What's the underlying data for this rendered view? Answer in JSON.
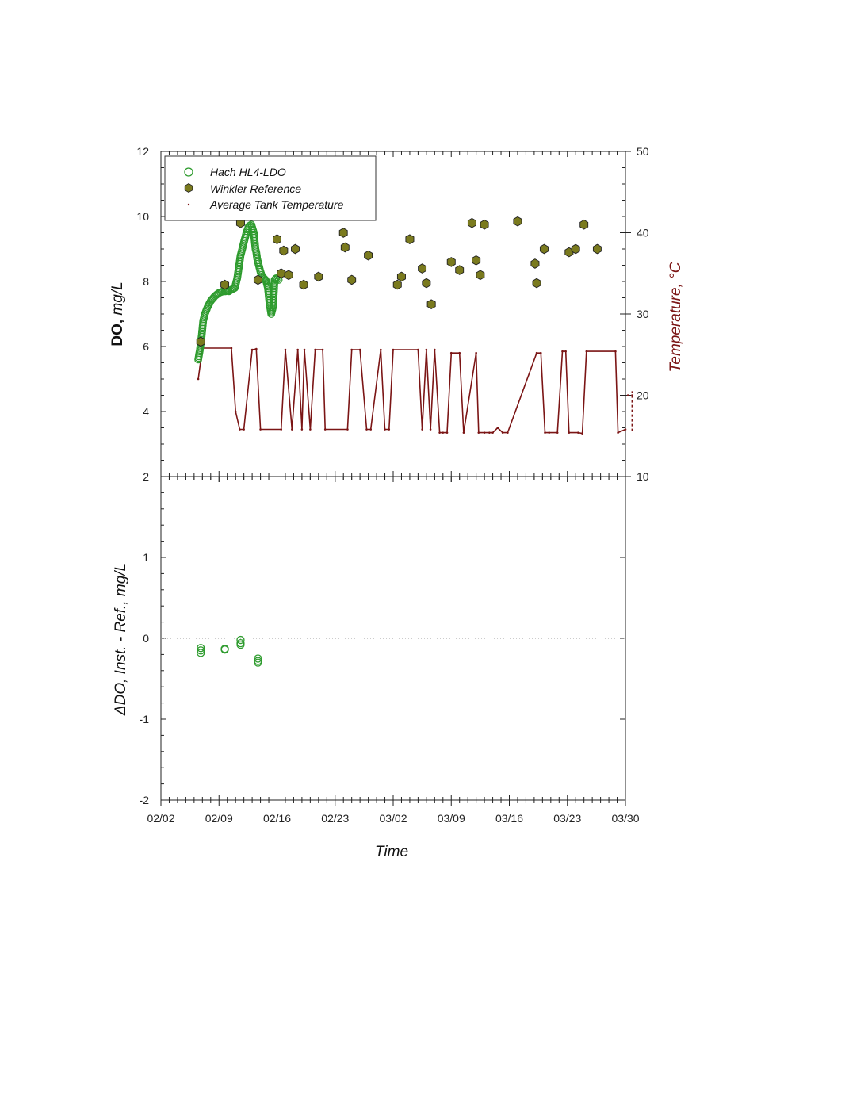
{
  "chart_data": [
    {
      "type": "scatter",
      "panel": "top",
      "xlabel": "",
      "ylabel_bold": "DO,",
      "ylabel_italic": "mg/L",
      "y2label": "Temperature, °C",
      "ylim": [
        2,
        12
      ],
      "yticks": [
        2,
        4,
        6,
        8,
        10,
        12
      ],
      "y2lim": [
        10,
        50
      ],
      "y2ticks": [
        10,
        20,
        30,
        40,
        50
      ],
      "xlim_days": [
        0,
        56
      ],
      "legend": {
        "position": "top-left",
        "entries": [
          "Hach HL4-LDO",
          "Winkler Reference",
          "Average Tank Temperature"
        ]
      },
      "series": [
        {
          "name": "Hach HL4-LDO",
          "marker": "open-circle",
          "color": "#2e9b2e",
          "x_days": [
            4.5,
            4.7,
            4.9,
            5.1,
            5.3,
            5.6,
            6.0,
            6.5,
            7.0,
            7.5,
            7.7,
            7.8,
            8.0,
            8.2,
            8.5,
            8.9,
            9.2,
            9.6,
            10.0,
            10.3,
            10.6,
            10.9,
            11.2,
            11.4,
            11.5,
            11.6,
            11.8,
            12.0,
            12.2,
            12.4,
            12.6,
            12.7,
            12.9,
            13.1,
            13.3,
            13.5,
            13.6,
            13.7,
            13.9,
            14.2
          ],
          "values": [
            5.6,
            5.9,
            6.3,
            6.8,
            7.0,
            7.2,
            7.4,
            7.55,
            7.65,
            7.7,
            7.7,
            7.7,
            7.72,
            7.7,
            7.75,
            7.8,
            8.1,
            8.8,
            9.2,
            9.5,
            9.7,
            9.75,
            9.5,
            9.0,
            8.9,
            8.7,
            8.5,
            8.3,
            8.15,
            8.1,
            8.05,
            8.0,
            7.8,
            7.3,
            7.0,
            7.2,
            7.6,
            8.05,
            8.1,
            8.05
          ]
        },
        {
          "name": "Winkler Reference",
          "marker": "filled-hexagon",
          "color": "#7a7a1e",
          "x_days": [
            4.8,
            7.7,
            9.6,
            11.7,
            14.0,
            14.5,
            14.8,
            15.4,
            16.2,
            17.2,
            19.0,
            22.0,
            22.2,
            23.0,
            25.0,
            28.5,
            29.0,
            30.0,
            31.5,
            32.0,
            32.6,
            35.0,
            36.0,
            37.5,
            38.0,
            38.5,
            39.0,
            43.0,
            45.1,
            45.3,
            46.2,
            49.2,
            50.0,
            51.0,
            52.6
          ],
          "values": [
            6.15,
            7.9,
            9.8,
            8.05,
            9.3,
            8.25,
            8.95,
            8.2,
            9.0,
            7.9,
            8.15,
            9.5,
            9.05,
            8.05,
            8.8,
            7.9,
            8.15,
            9.3,
            8.4,
            7.95,
            7.3,
            8.6,
            8.35,
            9.8,
            8.65,
            8.2,
            9.75,
            9.85,
            8.55,
            7.95,
            9.0,
            8.9,
            9.0,
            9.75,
            9.0
          ]
        },
        {
          "name": "Average Tank Temperature",
          "marker": "dot",
          "color": "#7b1515",
          "axis": "right",
          "x_days": [
            4.5,
            5.0,
            8.5,
            9.0,
            9.5,
            10.0,
            11.0,
            11.5,
            12.0,
            14.5,
            15.0,
            15.8,
            16.5,
            17.0,
            17.3,
            18.0,
            18.6,
            19.5,
            19.8,
            22.5,
            23.0,
            24.0,
            24.8,
            25.3,
            26.5,
            27.0,
            27.5,
            28.0,
            31.0,
            31.5,
            32.0,
            32.5,
            33.0,
            33.6,
            34.0,
            34.5,
            35.0,
            36.0,
            36.5,
            38.0,
            38.3,
            39.0,
            39.6,
            40.0,
            40.6,
            41.2,
            41.8,
            45.3,
            45.8,
            46.3,
            46.8,
            47.8,
            48.4,
            48.8,
            49.2,
            50.3,
            50.8,
            51.3,
            54.8,
            55.1,
            56.0,
            56.3,
            56.8
          ],
          "values": [
            22,
            25.8,
            25.8,
            18.0,
            15.8,
            15.8,
            25.6,
            25.7,
            15.8,
            15.8,
            25.6,
            15.8,
            25.6,
            15.8,
            25.6,
            15.8,
            25.6,
            25.6,
            15.8,
            15.8,
            25.6,
            25.6,
            15.8,
            15.8,
            25.6,
            15.8,
            15.8,
            25.6,
            25.6,
            15.8,
            25.6,
            15.8,
            25.6,
            15.4,
            15.4,
            15.4,
            25.2,
            25.2,
            15.4,
            25.2,
            15.4,
            15.4,
            15.4,
            15.4,
            16.0,
            15.4,
            15.4,
            25.2,
            25.2,
            15.4,
            15.4,
            15.4,
            25.4,
            25.4,
            15.4,
            15.4,
            15.3,
            25.4,
            25.4,
            15.4,
            15.8,
            20,
            20
          ]
        }
      ]
    },
    {
      "type": "scatter",
      "panel": "bottom",
      "xlabel": "Time",
      "ylabel": "ΔDO, Inst. - Ref., mg/L",
      "ylim": [
        -2,
        2
      ],
      "yticks": [
        -2,
        -1,
        0,
        1,
        2
      ],
      "reference_line": 0,
      "xlim_days": [
        0,
        56
      ],
      "xtick_days": [
        0,
        7,
        14,
        21,
        28,
        35,
        42,
        49,
        56
      ],
      "xtick_labels": [
        "02/02",
        "02/09",
        "02/16",
        "02/23",
        "03/02",
        "03/09",
        "03/16",
        "03/23",
        "03/30"
      ],
      "series": [
        {
          "name": "Hach HL4-LDO - Winkler",
          "marker": "open-circle",
          "color": "#2e9b2e",
          "x_days": [
            4.8,
            4.8,
            4.8,
            7.7,
            7.7,
            9.6,
            9.6,
            9.6,
            11.7,
            11.7,
            11.7
          ],
          "values": [
            -0.12,
            -0.15,
            -0.18,
            -0.13,
            -0.14,
            -0.02,
            -0.06,
            -0.08,
            -0.25,
            -0.28,
            -0.3
          ]
        }
      ]
    }
  ]
}
